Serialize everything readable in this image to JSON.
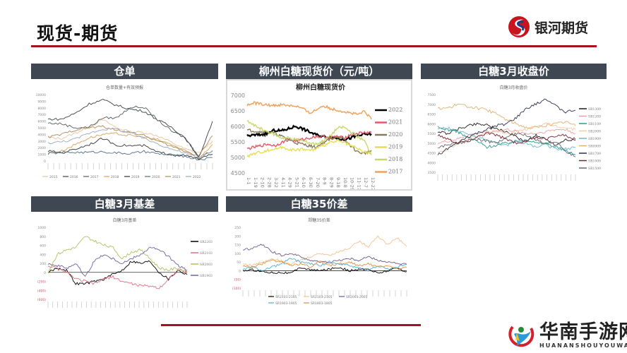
{
  "header": {
    "title": "现货-期货",
    "brand": "银河期货",
    "brand_color": "#a5141c",
    "panel_head_color": "#3f4753"
  },
  "watermark": {
    "main": "华南手游网",
    "sub": "HUANANSHOUYOUWANG"
  },
  "panels": [
    {
      "title": "仓单"
    },
    {
      "title": "柳州白糖现货价（元/吨）"
    },
    {
      "title": "白糖3月收盘价"
    },
    {
      "title": "白糖3月基差"
    },
    {
      "title": "白糖35价差"
    }
  ],
  "chart_data": [
    {
      "type": "line",
      "title": "仓单数量+有效预报",
      "ylim": [
        0,
        10000
      ],
      "yticks": [
        0,
        1000,
        2000,
        3000,
        4000,
        5000,
        6000,
        7000,
        8000,
        9000,
        10000
      ],
      "legend_position": "bottom",
      "series": [
        {
          "name": "2015",
          "color": "#e8c49a",
          "values": [
            3500,
            3400,
            4200,
            5200,
            6200,
            5000,
            4400,
            4300,
            3800,
            2800,
            1800,
            1200,
            3000
          ]
        },
        {
          "name": "2016",
          "color": "#3b3f46",
          "values": [
            6300,
            6300,
            7200,
            8600,
            9200,
            8400,
            7800,
            7500,
            6200,
            5100,
            3500,
            500,
            6000
          ]
        },
        {
          "name": "2017",
          "color": "#555a60",
          "values": [
            5700,
            5600,
            5000,
            5100,
            6500,
            6500,
            8100,
            8100,
            6200,
            4500,
            3500,
            600,
            1500
          ]
        },
        {
          "name": "2018",
          "color": "#d7a35a",
          "values": [
            1200,
            1500,
            2500,
            3500,
            4000,
            4100,
            3800,
            3600,
            3200,
            2500,
            1500,
            400,
            2500
          ]
        },
        {
          "name": "2019",
          "color": "#2f3338",
          "values": [
            1500,
            1200,
            1800,
            2500,
            3400,
            2400,
            2300,
            2300,
            1300,
            1000,
            800,
            300,
            1000
          ]
        },
        {
          "name": "2020",
          "color": "#4a6f7f",
          "values": [
            1100,
            1300,
            1300,
            1300,
            1400,
            1200,
            1100,
            1400,
            1100,
            900,
            700,
            200,
            500
          ]
        },
        {
          "name": "2021",
          "color": "#b08a56",
          "values": [
            3600,
            4000,
            4700,
            5000,
            5200,
            4600,
            4400,
            3800,
            3000,
            2200,
            1500,
            800,
            3800
          ]
        },
        {
          "name": "2022",
          "color": "#9aa8bf",
          "values": [
            2700,
            2900,
            3300,
            4200,
            4800,
            4800,
            4200,
            3400,
            2600,
            1800,
            1200,
            400,
            1600
          ]
        }
      ]
    },
    {
      "type": "line",
      "title": "柳州白糖现货价",
      "ylim": [
        4500,
        7000
      ],
      "yticks": [
        4500,
        5000,
        5500,
        6000,
        6500,
        7000
      ],
      "categories": [
        "1-1",
        "1-19",
        "2-10",
        "2-28",
        "3-22",
        "4-11",
        "4-29",
        "5-21",
        "6-10",
        "6-30",
        "7-20",
        "8-9",
        "8-29",
        "9-18",
        "10-8",
        "10-29",
        "11-17",
        "12-7",
        "12-27"
      ],
      "legend_position": "right",
      "series": [
        {
          "name": "2022",
          "color": "#000000",
          "values": [
            5720,
            5740,
            5760,
            5800,
            5900,
            5880,
            5950,
            6030,
            5950,
            5850,
            5750,
            5700,
            5680,
            5650,
            5600,
            5650,
            5720,
            5760,
            5780
          ]
        },
        {
          "name": "2021",
          "color": "#e05a6a",
          "values": [
            5300,
            5350,
            5400,
            5450,
            5400,
            5500,
            5600,
            5550,
            5600,
            5650,
            5700,
            5700,
            5650,
            5700,
            5650,
            5750,
            5800,
            5820,
            5830
          ]
        },
        {
          "name": "2020",
          "color": "#8a7a5a",
          "values": [
            5900,
            5880,
            5850,
            5850,
            5800,
            5700,
            5600,
            5500,
            5450,
            5400,
            5350,
            5500,
            5600,
            5700,
            5600,
            5400,
            5200,
            5150,
            5250
          ]
        },
        {
          "name": "2019",
          "color": "#e6dd55",
          "values": [
            5050,
            5150,
            5200,
            5250,
            5300,
            5350,
            5300,
            5250,
            5300,
            5250,
            5300,
            5400,
            5500,
            5550,
            5500,
            5400,
            5300,
            5200,
            5150
          ]
        },
        {
          "name": "2018",
          "color": "#c8d86a",
          "values": [
            6200,
            6050,
            5950,
            5850,
            5750,
            5650,
            5650,
            5600,
            5550,
            5500,
            5450,
            5550,
            5700,
            5950,
            6000,
            5850,
            5700,
            5550,
            5100
          ]
        },
        {
          "name": "2017",
          "color": "#f0a058",
          "values": [
            6700,
            6780,
            6750,
            6700,
            6700,
            6720,
            6700,
            6680,
            6600,
            6450,
            6550,
            6700,
            6600,
            6550,
            6500,
            6450,
            6400,
            6500,
            6250
          ]
        }
      ]
    },
    {
      "type": "line",
      "title": "白糖3月收盘价",
      "ylim": [
        3500,
        7500
      ],
      "yticks": [
        3500,
        4000,
        4500,
        5000,
        5500,
        6000,
        6500,
        7000,
        7500
      ],
      "legend_position": "right",
      "series": [
        {
          "name": "SR1309",
          "color": "#1a1a1a",
          "values": [
            5600,
            5500,
            5700,
            5900,
            6000,
            5950,
            5700,
            5600,
            5300,
            5100,
            5400,
            5200,
            4900,
            5200,
            5150
          ]
        },
        {
          "name": "SR1209",
          "color": "#e8a0a8",
          "values": [
            5000,
            5100,
            5200,
            5400,
            5500,
            5600,
            5600,
            5700,
            5600,
            5500,
            5500,
            5600,
            5700,
            5700,
            5500
          ]
        },
        {
          "name": "SR1109",
          "color": "#2a9a8a",
          "values": [
            5800,
            5700,
            5600,
            5300,
            5100,
            4800,
            4900,
            5000,
            5100,
            5200,
            5000,
            5000,
            4800,
            4600,
            4400
          ]
        },
        {
          "name": "SR2009",
          "color": "#f5c8a0",
          "values": [
            4500,
            4700,
            4900,
            5200,
            5400,
            5500,
            5700,
            5500,
            5600,
            5700,
            5900,
            6000,
            5900,
            5800,
            5700
          ]
        },
        {
          "name": "SR1909",
          "color": "#6ab8c8",
          "values": [
            5700,
            5800,
            5600,
            5500,
            5300,
            5200,
            5000,
            4900,
            5100,
            5000,
            4800,
            4900,
            4700,
            4700,
            4800
          ]
        },
        {
          "name": "SR0909",
          "color": "#e0b070",
          "values": [
            6800,
            6800,
            7000,
            6900,
            6800,
            6700,
            6500,
            6200,
            6000,
            5800,
            5800,
            5900,
            6000,
            6100,
            5900
          ]
        },
        {
          "name": "SR1709",
          "color": "#2a2f4a",
          "values": [
            4400,
            4700,
            5000,
            5300,
            5500,
            5700,
            5900,
            6000,
            6300,
            6800,
            7000,
            7300,
            6900,
            6600,
            6700
          ]
        },
        {
          "name": "SR1009",
          "color": "#7a2030",
          "values": [
            5400,
            5200,
            5000,
            5100,
            5300,
            5500,
            5400,
            5200,
            5000,
            5100,
            5300,
            5200,
            5400,
            5400,
            5200
          ]
        },
        {
          "name": "SR1509",
          "color": "#606870",
          "values": [
            4800,
            4900,
            5000,
            5100,
            5200,
            5100,
            5000,
            5300,
            5500,
            5400,
            5200,
            5000,
            5100,
            4600,
            4300
          ]
        }
      ]
    },
    {
      "type": "line",
      "title": "白糖3月基差",
      "ylim": [
        -600,
        1000
      ],
      "yticks": [
        -600,
        -400,
        -200,
        0,
        200,
        400,
        600,
        800,
        1000
      ],
      "ytick_labels": [
        "(600)",
        "(400)",
        "(200)",
        "0",
        "200",
        "400",
        "600",
        "800",
        "1000"
      ],
      "legend_position": "right",
      "series": [
        {
          "name": "SR2203",
          "color": "#000000",
          "values": [
            0,
            100,
            50,
            -250,
            -250,
            -200,
            -150,
            -50,
            50,
            250,
            200,
            250,
            0,
            -150,
            50,
            -50
          ]
        },
        {
          "name": "SR2103",
          "color": "#e07080",
          "values": [
            150,
            80,
            0,
            -150,
            -200,
            -250,
            -150,
            -100,
            -200,
            -250,
            -300,
            -300,
            -350,
            -150,
            50,
            0
          ]
        },
        {
          "name": "SR2003",
          "color": "#b0c060",
          "values": [
            0,
            400,
            500,
            550,
            800,
            700,
            600,
            550,
            300,
            450,
            500,
            300,
            100,
            50,
            100,
            0
          ]
        },
        {
          "name": "SR1903",
          "color": "#7060a0",
          "values": [
            200,
            150,
            100,
            200,
            -100,
            250,
            400,
            300,
            200,
            300,
            400,
            550,
            500,
            350,
            150,
            50
          ]
        }
      ]
    },
    {
      "type": "line",
      "title": "郑糖35价差",
      "ylim": [
        -100,
        250
      ],
      "yticks": [
        -100,
        -50,
        0,
        50,
        100,
        150,
        200,
        250
      ],
      "ytick_labels": [
        "(100)",
        "(50)",
        "0",
        "50",
        "100",
        "150",
        "200",
        "250"
      ],
      "legend_position": "bottom",
      "series": [
        {
          "name": "SR2101-2105",
          "color": "#000000",
          "values": [
            0,
            5,
            -5,
            -10,
            -10,
            -15,
            20,
            5,
            0,
            10,
            20,
            0,
            5,
            10,
            -15,
            0,
            15,
            -5
          ]
        },
        {
          "name": "SR2103-2105",
          "color": "#f3c090",
          "values": [
            40,
            30,
            50,
            70,
            60,
            40,
            60,
            80,
            100,
            90,
            110,
            130,
            170,
            140,
            200,
            150,
            190,
            140
          ]
        },
        {
          "name": "SR2003-2005",
          "color": "#6a5a8a",
          "values": [
            120,
            130,
            150,
            110,
            90,
            100,
            80,
            60,
            50,
            50,
            60,
            70,
            60,
            80,
            60,
            50,
            40,
            35
          ]
        },
        {
          "name": "SR1903-1905",
          "color": "#4ab0c8",
          "values": [
            10,
            20,
            0,
            20,
            40,
            70,
            50,
            40,
            30,
            50,
            40,
            30,
            20,
            0,
            30,
            10,
            20,
            40
          ]
        },
        {
          "name": "SR1803-1805",
          "color": "#e09040",
          "values": [
            30,
            20,
            40,
            60,
            50,
            30,
            40,
            20,
            60,
            30,
            40,
            50,
            30,
            40,
            20,
            30,
            10,
            20
          ]
        }
      ]
    }
  ]
}
